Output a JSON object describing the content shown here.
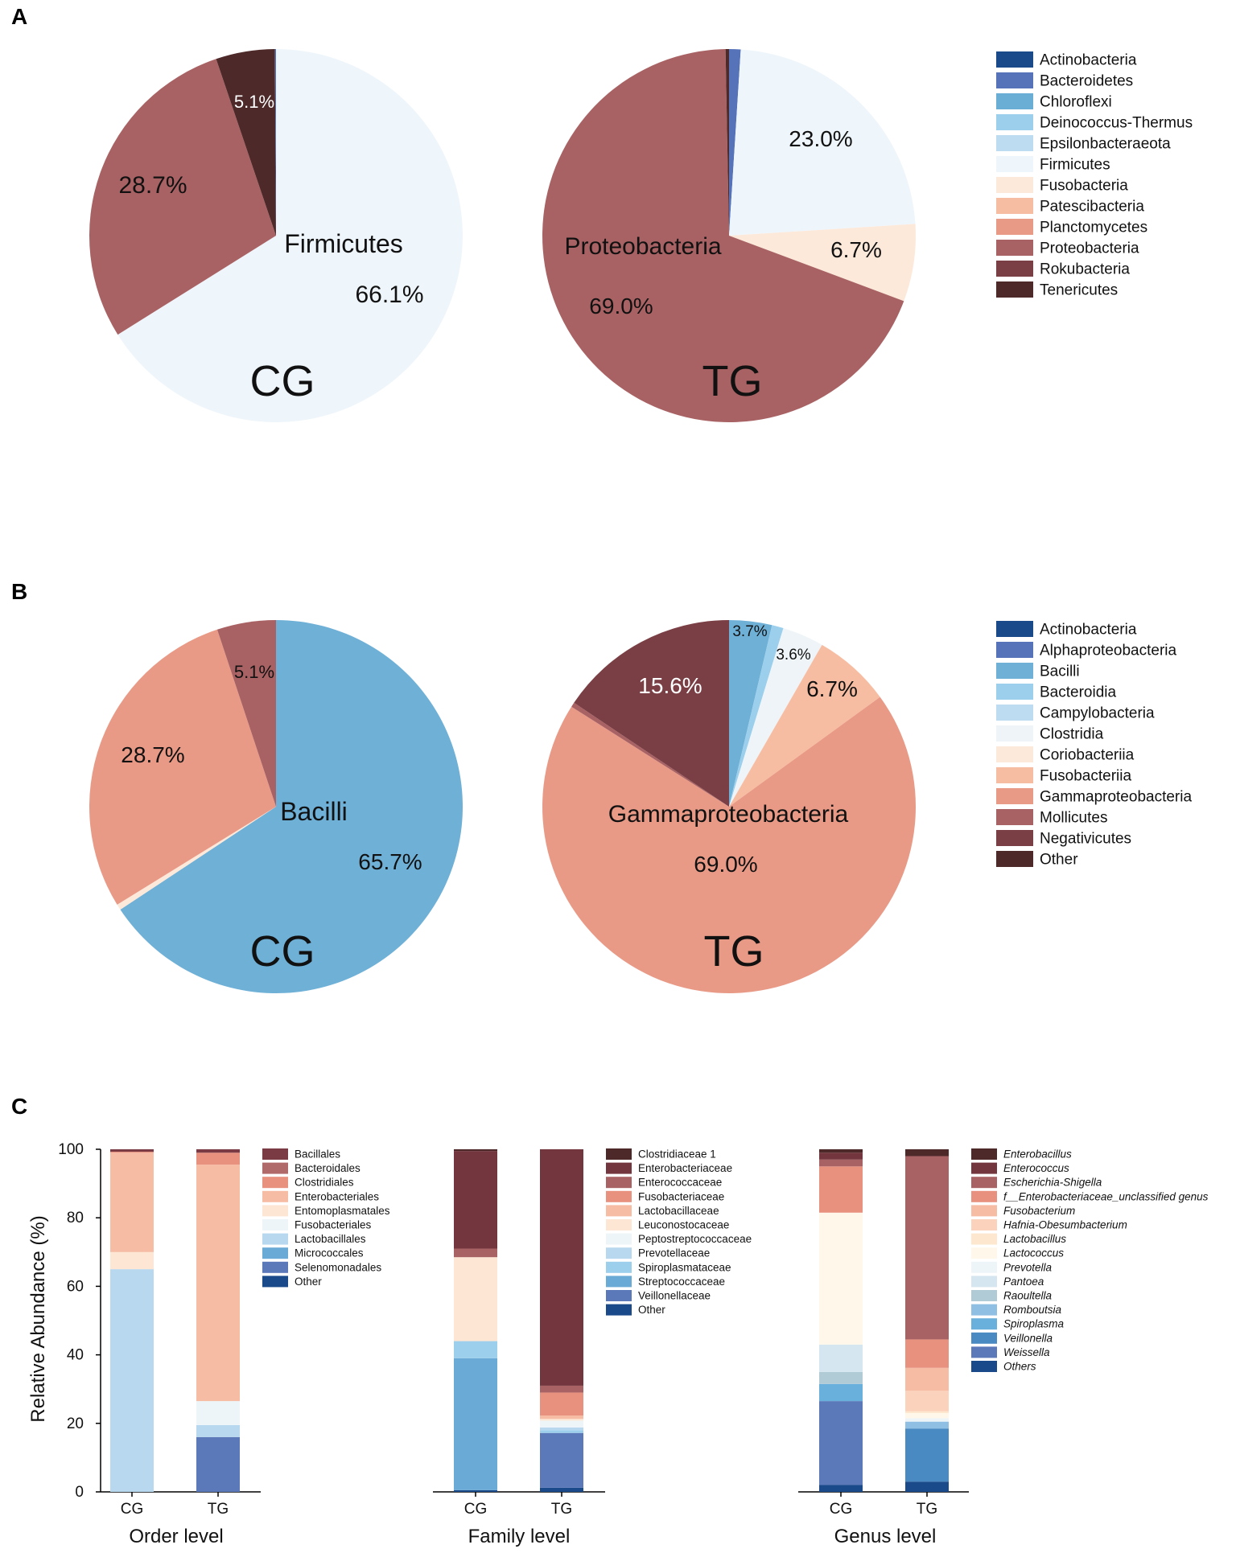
{
  "panels": {
    "a": "A",
    "b": "B",
    "c": "C"
  },
  "chart_data": [
    {
      "type": "pie",
      "panel": "A",
      "id": "a-cg",
      "group_label": "CG",
      "center_label": "Firmicutes",
      "slices": [
        {
          "name": "Firmicutes",
          "value": 66.1,
          "label": "66.1%",
          "color": "#eff6fb"
        },
        {
          "name": "Proteobacteria",
          "value": 28.7,
          "label": "28.7%",
          "color": "#a96264"
        },
        {
          "name": "Tenericutes",
          "value": 5.1,
          "label": "5.1%",
          "color": "#4e2929"
        },
        {
          "name": "Other",
          "value": 0.1,
          "label": "",
          "color": "#5673b9"
        }
      ]
    },
    {
      "type": "pie",
      "panel": "A",
      "id": "a-tg",
      "group_label": "TG",
      "center_label": "Proteobacteria",
      "slices": [
        {
          "name": "Bacteroidetes",
          "value": 1.0,
          "label": "",
          "color": "#5673b9"
        },
        {
          "name": "Firmicutes",
          "value": 23.0,
          "label": "23.0%",
          "color": "#eff6fb"
        },
        {
          "name": "Fusobacteria",
          "value": 6.7,
          "label": "6.7%",
          "color": "#fde9da"
        },
        {
          "name": "Proteobacteria",
          "value": 69.0,
          "label": "69.0%",
          "color": "#a96264"
        },
        {
          "name": "Tenericutes",
          "value": 0.3,
          "label": "",
          "color": "#4e2929"
        }
      ]
    },
    {
      "type": "pie",
      "panel": "B",
      "id": "b-cg",
      "group_label": "CG",
      "center_label": "Bacilli",
      "slices": [
        {
          "name": "Bacilli",
          "value": 65.7,
          "label": "65.7%",
          "color": "#6fb0d7"
        },
        {
          "name": "Coriobacteriia",
          "value": 0.5,
          "label": "",
          "color": "#fde9da"
        },
        {
          "name": "Gammaproteobacteria",
          "value": 28.7,
          "label": "28.7%",
          "color": "#e99a87"
        },
        {
          "name": "Mollicutes",
          "value": 5.1,
          "label": "5.1%",
          "color": "#a96264"
        }
      ]
    },
    {
      "type": "pie",
      "panel": "B",
      "id": "b-tg",
      "group_label": "TG",
      "center_label": "Gammaproteobacteria",
      "slices": [
        {
          "name": "Bacilli",
          "value": 3.7,
          "label": "3.7%",
          "color": "#6fb0d7"
        },
        {
          "name": "Bacteroidia",
          "value": 1.0,
          "label": "",
          "color": "#9ccfec"
        },
        {
          "name": "Clostridia",
          "value": 3.6,
          "label": "3.6%",
          "color": "#eef4f7"
        },
        {
          "name": "Fusobacteriia",
          "value": 6.7,
          "label": "6.7%",
          "color": "#f7bda2"
        },
        {
          "name": "Gammaproteobacteria",
          "value": 69.0,
          "label": "69.0%",
          "color": "#e99a87"
        },
        {
          "name": "Mollicutes",
          "value": 0.4,
          "label": "",
          "color": "#a96264"
        },
        {
          "name": "Negativicutes",
          "value": 15.6,
          "label": "15.6%",
          "color": "#7a3f45"
        }
      ]
    },
    {
      "type": "bar",
      "stacked": true,
      "panel": "C",
      "id": "c-order",
      "title": "Order level",
      "ylabel": "Relative Abundance (%)",
      "ylim": [
        0,
        100
      ],
      "yticks": [
        "0",
        "20",
        "40",
        "60",
        "80",
        "100"
      ],
      "categories": [
        "CG",
        "TG"
      ],
      "series": [
        {
          "name": "Other",
          "color": "#1a4a8a",
          "values": [
            0,
            0
          ]
        },
        {
          "name": "Selenomonadales",
          "color": "#5b78b9",
          "values": [
            0,
            16
          ]
        },
        {
          "name": "Micrococcales",
          "color": "#6aaad6",
          "values": [
            0,
            0
          ]
        },
        {
          "name": "Lactobacillales",
          "color": "#b8d8ef",
          "values": [
            65,
            3.5
          ]
        },
        {
          "name": "Fusobacteriales",
          "color": "#eef5f9",
          "values": [
            0,
            7
          ]
        },
        {
          "name": "Entomoplasmatales",
          "color": "#fde6d4",
          "values": [
            5,
            0
          ]
        },
        {
          "name": "Enterobacteriales",
          "color": "#f7bca4",
          "values": [
            29,
            69
          ]
        },
        {
          "name": "Clostridiales",
          "color": "#e8917f",
          "values": [
            0.3,
            3.5
          ]
        },
        {
          "name": "Bacteroidales",
          "color": "#b06a6a",
          "values": [
            0,
            0
          ]
        },
        {
          "name": "Bacillales",
          "color": "#7a3b44",
          "values": [
            0.7,
            1
          ]
        }
      ]
    },
    {
      "type": "bar",
      "stacked": true,
      "panel": "C",
      "id": "c-family",
      "title": "Family level",
      "ylim": [
        0,
        100
      ],
      "categories": [
        "CG",
        "TG"
      ],
      "series": [
        {
          "name": "Other",
          "color": "#1a4a8a",
          "values": [
            0.5,
            1.2
          ]
        },
        {
          "name": "Veillonellaceae",
          "color": "#5b78b9",
          "values": [
            0,
            16
          ]
        },
        {
          "name": "Streptococcaceae",
          "color": "#6aaad6",
          "values": [
            38.5,
            0
          ]
        },
        {
          "name": "Spiroplasmataceae",
          "color": "#9ccfec",
          "values": [
            5,
            0.8
          ]
        },
        {
          "name": "Prevotellaceae",
          "color": "#b8d8ef",
          "values": [
            0,
            0.8
          ]
        },
        {
          "name": "Peptostreptococcaceae",
          "color": "#eef5f9",
          "values": [
            0,
            2
          ]
        },
        {
          "name": "Leuconostocaceae",
          "color": "#fde6d4",
          "values": [
            24.5,
            0.5
          ]
        },
        {
          "name": "Lactobacillaceae",
          "color": "#f7bca4",
          "values": [
            0,
            1
          ]
        },
        {
          "name": "Fusobacteriaceae",
          "color": "#e8917f",
          "values": [
            0,
            6.7
          ]
        },
        {
          "name": "Enterococcaceae",
          "color": "#a96264",
          "values": [
            2.5,
            2
          ]
        },
        {
          "name": "Enterobacteriaceae",
          "color": "#73353e",
          "values": [
            28.5,
            69
          ]
        },
        {
          "name": "Clostridiaceae 1",
          "color": "#4e2929",
          "values": [
            0.5,
            0
          ]
        }
      ]
    },
    {
      "type": "bar",
      "stacked": true,
      "panel": "C",
      "id": "c-genus",
      "title": "Genus level",
      "ylim": [
        0,
        100
      ],
      "categories": [
        "CG",
        "TG"
      ],
      "series": [
        {
          "name": "Others",
          "color": "#1a4a8a",
          "values": [
            2,
            3
          ]
        },
        {
          "name": "Weissella",
          "color": "#5b78b9",
          "values": [
            24.5,
            0
          ]
        },
        {
          "name": "Veillonella",
          "color": "#4a8ac2",
          "values": [
            0,
            15.5
          ]
        },
        {
          "name": "Spiroplasma",
          "color": "#6ab0dd",
          "values": [
            5,
            0
          ]
        },
        {
          "name": "Romboutsia",
          "color": "#8fbfe3",
          "values": [
            0,
            2
          ]
        },
        {
          "name": "Raoultella",
          "color": "#b0cbd6",
          "values": [
            3.5,
            0
          ]
        },
        {
          "name": "Pantoea",
          "color": "#d6e6f0",
          "values": [
            8,
            0
          ]
        },
        {
          "name": "Prevotella",
          "color": "#eef5f9",
          "values": [
            0,
            1
          ]
        },
        {
          "name": "Lactococcus",
          "color": "#fff8ea",
          "values": [
            38.5,
            1.5
          ]
        },
        {
          "name": "Lactobacillus",
          "color": "#fde8cf",
          "values": [
            0,
            0.5
          ]
        },
        {
          "name": "Hafnia-Obesumbacterium",
          "color": "#fbd3bc",
          "values": [
            0,
            6
          ]
        },
        {
          "name": "Fusobacterium",
          "color": "#f7bca4",
          "values": [
            0,
            6.7
          ]
        },
        {
          "name": "f__Enterobacteriaceae_unclassified genus",
          "color": "#e8917f",
          "values": [
            13.5,
            8.3
          ]
        },
        {
          "name": "Escherichia-Shigella",
          "color": "#a96264",
          "values": [
            2,
            53.5
          ]
        },
        {
          "name": "Enterococcus",
          "color": "#73353e",
          "values": [
            2,
            0
          ]
        },
        {
          "name": "Enterobacillus",
          "color": "#4e2929",
          "values": [
            1,
            2
          ]
        }
      ]
    }
  ],
  "legends": {
    "a": {
      "colors": [
        "#1a4a8a",
        "#5673b9",
        "#6aaed6",
        "#9ccfec",
        "#bedcf1",
        "#eff6fb",
        "#fde9da",
        "#f7bda2",
        "#e99a87",
        "#a96264",
        "#7a3f45",
        "#4e2929"
      ],
      "items": [
        "Actinobacteria",
        "Bacteroidetes",
        "Chloroflexi",
        "Deinococcus-Thermus",
        "Epsilonbacteraeota",
        "Firmicutes",
        "Fusobacteria",
        "Patescibacteria",
        "Planctomycetes",
        "Proteobacteria",
        "Rokubacteria",
        "Tenericutes"
      ]
    },
    "b": {
      "colors": [
        "#1a4a8a",
        "#5673b9",
        "#6fb0d7",
        "#9ccfec",
        "#bedcf1",
        "#eef4f7",
        "#fde9da",
        "#f7bda2",
        "#e99a87",
        "#a96264",
        "#7a3f45",
        "#4e2929"
      ],
      "items": [
        "Actinobacteria",
        "Alphaproteobacteria",
        "Bacilli",
        "Bacteroidia",
        "Campylobacteria",
        "Clostridia",
        "Coriobacteriia",
        "Fusobacteriia",
        "Gammaproteobacteria",
        "Mollicutes",
        "Negativicutes",
        "Other"
      ]
    },
    "order": {
      "colors": [
        "#7a3b44",
        "#b06a6a",
        "#e8917f",
        "#f7bca4",
        "#fde6d4",
        "#eef5f9",
        "#b8d8ef",
        "#6aaad6",
        "#5b78b9",
        "#1a4a8a"
      ],
      "items": [
        "Bacillales",
        "Bacteroidales",
        "Clostridiales",
        "Enterobacteriales",
        "Entomoplasmatales",
        "Fusobacteriales",
        "Lactobacillales",
        "Micrococcales",
        "Selenomonadales",
        "Other"
      ]
    },
    "family": {
      "colors": [
        "#4e2929",
        "#73353e",
        "#a96264",
        "#e8917f",
        "#f7bca4",
        "#fde6d4",
        "#eef5f9",
        "#b8d8ef",
        "#9ccfec",
        "#6aaad6",
        "#5b78b9",
        "#1a4a8a"
      ],
      "items": [
        "Clostridiaceae 1",
        "Enterobacteriaceae",
        "Enterococcaceae",
        "Fusobacteriaceae",
        "Lactobacillaceae",
        "Leuconostocaceae",
        "Peptostreptococcaceae",
        "Prevotellaceae",
        "Spiroplasmataceae",
        "Streptococcaceae",
        "Veillonellaceae",
        "Other"
      ]
    },
    "genus": {
      "colors": [
        "#4e2929",
        "#73353e",
        "#a96264",
        "#e8917f",
        "#f7bca4",
        "#fbd3bc",
        "#fde8cf",
        "#fff8ea",
        "#eef5f9",
        "#d6e6f0",
        "#b0cbd6",
        "#8fbfe3",
        "#6ab0dd",
        "#4a8ac2",
        "#5b78b9",
        "#1a4a8a"
      ],
      "items": [
        "Enterobacillus",
        "Enterococcus",
        "Escherichia-Shigella",
        "f__Enterobacteriaceae_unclassified genus",
        "Fusobacterium",
        "Hafnia-Obesumbacterium",
        "Lactobacillus",
        "Lactococcus",
        "Prevotella",
        "Pantoea",
        "Raoultella",
        "Romboutsia",
        "Spiroplasma",
        "Veillonella",
        "Weissella",
        "Others"
      ]
    }
  }
}
